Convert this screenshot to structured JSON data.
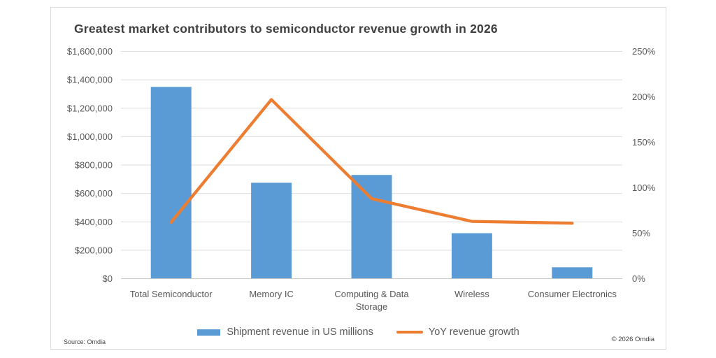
{
  "chart_data": {
    "type": "combo",
    "title": "Greatest market contributors to semiconductor revenue growth in 2026",
    "categories": [
      "Total Semiconductor",
      "Memory IC",
      "Computing & Data Storage",
      "Wireless",
      "Consumer Electronics"
    ],
    "category_label_lines": [
      [
        "Total Semiconductor"
      ],
      [
        "Memory IC"
      ],
      [
        "Computing & Data",
        "Storage"
      ],
      [
        "Wireless"
      ],
      [
        "Consumer Electronics"
      ]
    ],
    "series": [
      {
        "name": "Shipment revenue in US millions",
        "chart_type": "bar",
        "axis": "left",
        "color": "#5B9BD5",
        "values": [
          1350000,
          675000,
          730000,
          320000,
          80000
        ]
      },
      {
        "name": "YoY revenue growth",
        "chart_type": "line",
        "axis": "right",
        "color": "#ED7D31",
        "unit": "%",
        "values": [
          62,
          197,
          88,
          63,
          61
        ]
      }
    ],
    "left_axis": {
      "min": 0,
      "max": 1600000,
      "step": 200000,
      "tick_labels": [
        "$1,600,000",
        "$1,400,000",
        "$1,200,000",
        "$1,000,000",
        "$800,000",
        "$600,000",
        "$400,000",
        "$200,000",
        "$0"
      ]
    },
    "right_axis": {
      "min": 0,
      "max": 250,
      "step": 50,
      "tick_labels": [
        "250%",
        "200%",
        "150%",
        "100%",
        "50%",
        "0%"
      ]
    },
    "legend_position": "bottom",
    "grid": true,
    "colors": {
      "gridline": "#dcdcdc",
      "axis_line": "#c9c9c9",
      "tick_text": "#595959",
      "title_text": "#3f3f3f"
    }
  },
  "footer": {
    "source": "Source: Omdia",
    "copyright": "© 2026 Omdia"
  }
}
